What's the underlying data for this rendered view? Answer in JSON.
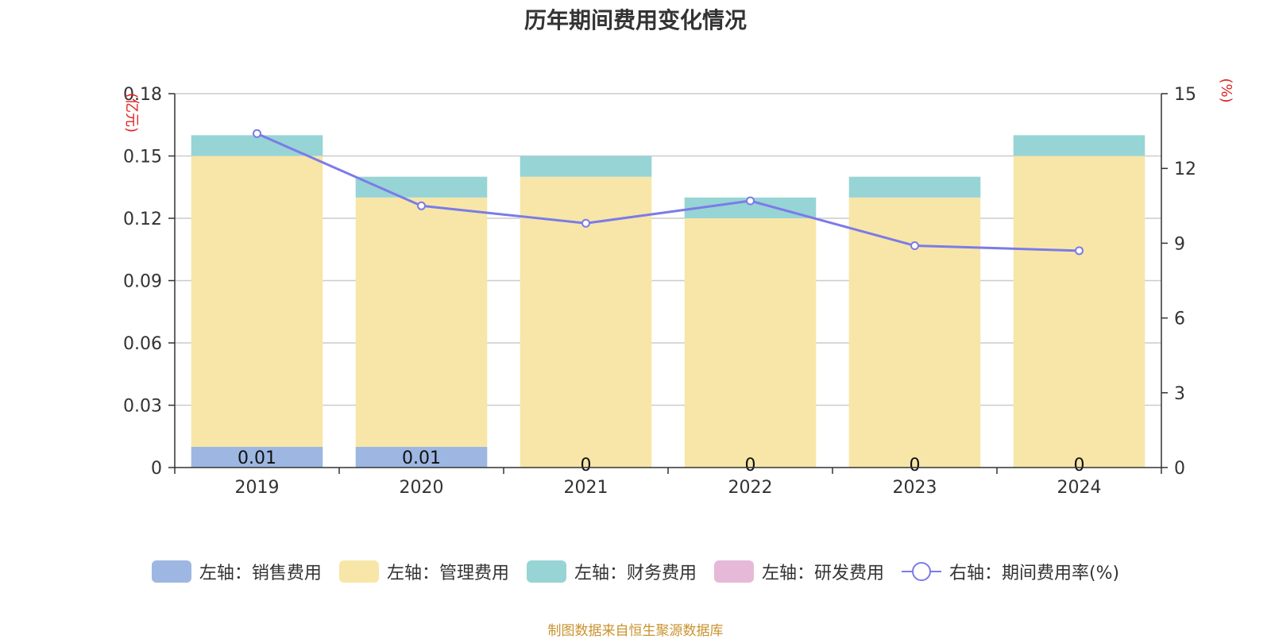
{
  "chart_data": {
    "type": "bar",
    "title": "历年期间费用变化情况",
    "categories": [
      "2019",
      "2020",
      "2021",
      "2022",
      "2023",
      "2024"
    ],
    "left_axis": {
      "unit": "(亿元)",
      "ylim": [
        0,
        0.18
      ],
      "ticks": [
        "0",
        "0.03",
        "0.06",
        "0.09",
        "0.12",
        "0.15",
        "0.18"
      ]
    },
    "right_axis": {
      "unit": "(%)",
      "ylim": [
        0,
        15
      ],
      "ticks": [
        "0",
        "3",
        "6",
        "9",
        "12",
        "15"
      ]
    },
    "stacked": true,
    "series": [
      {
        "name": "左轴：销售费用",
        "axis": "left",
        "color": "#9db7e2",
        "values": [
          0.01,
          0.01,
          0,
          0,
          0,
          0
        ],
        "labels": [
          "0.01",
          "0.01",
          "0",
          "0",
          "0",
          "0"
        ]
      },
      {
        "name": "左轴：管理费用",
        "axis": "left",
        "color": "#f7e6a8",
        "values": [
          0.14,
          0.12,
          0.14,
          0.12,
          0.13,
          0.15
        ]
      },
      {
        "name": "左轴：财务费用",
        "axis": "left",
        "color": "#97d4d5",
        "values": [
          0.01,
          0.01,
          0.01,
          0.01,
          0.01,
          0.01
        ]
      },
      {
        "name": "左轴：研发费用",
        "axis": "left",
        "color": "#e6b9d9",
        "values": [
          0,
          0,
          0,
          0,
          0,
          0
        ]
      },
      {
        "name": "右轴：期间费用率(%)",
        "axis": "right",
        "type": "line",
        "color": "#7b7be8",
        "values": [
          13.4,
          10.5,
          9.8,
          10.7,
          8.9,
          8.7
        ]
      }
    ],
    "grid": true,
    "legend_position": "bottom"
  },
  "source_note": "制图数据来自恒生聚源数据库"
}
